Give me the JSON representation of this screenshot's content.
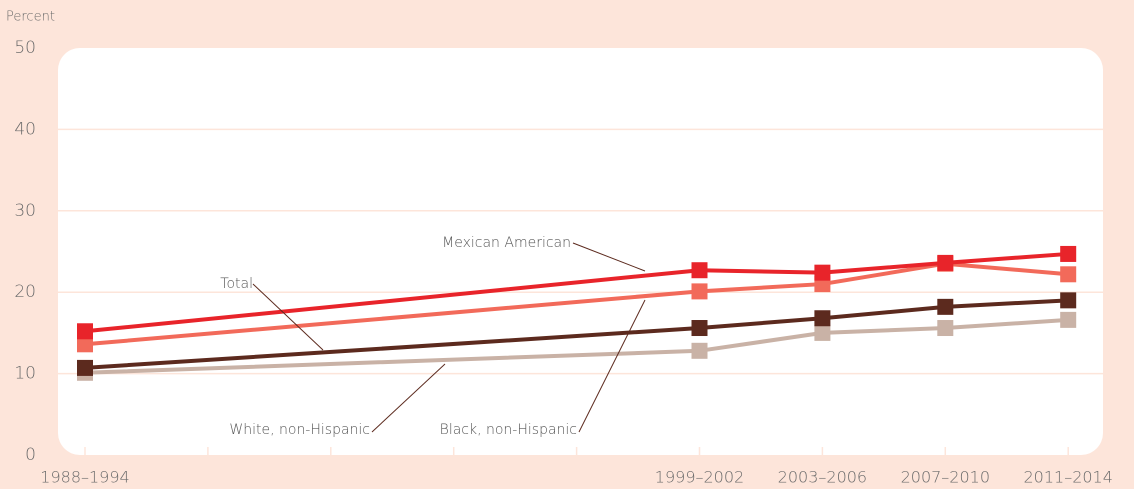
{
  "chart_data": {
    "type": "line",
    "y_label": "Percent",
    "categories": [
      "1988–1994",
      null,
      null,
      null,
      null,
      "1999–2002",
      "2003–2006",
      "2007–2010",
      "2011–2014"
    ],
    "series": [
      {
        "name": "White, non-Hispanic",
        "color": "#c9b2a6",
        "values": [
          10.1,
          null,
          null,
          null,
          null,
          12.8,
          15.0,
          15.6,
          16.6
        ]
      },
      {
        "name": "Total",
        "color": "#5c2a1e",
        "values": [
          10.7,
          null,
          null,
          null,
          null,
          15.6,
          16.8,
          18.2,
          19.0
        ]
      },
      {
        "name": "Black, non-Hispanic",
        "color": "#f26a5a",
        "values": [
          13.6,
          null,
          null,
          null,
          null,
          20.1,
          21.0,
          23.5,
          22.2
        ]
      },
      {
        "name": "Mexican American",
        "color": "#e8242a",
        "values": [
          15.2,
          null,
          null,
          null,
          null,
          22.7,
          22.4,
          23.6,
          24.7
        ]
      }
    ],
    "ylim": [
      0,
      50
    ],
    "yticks": [
      0,
      10,
      20,
      30,
      40,
      50
    ],
    "grid": true
  }
}
